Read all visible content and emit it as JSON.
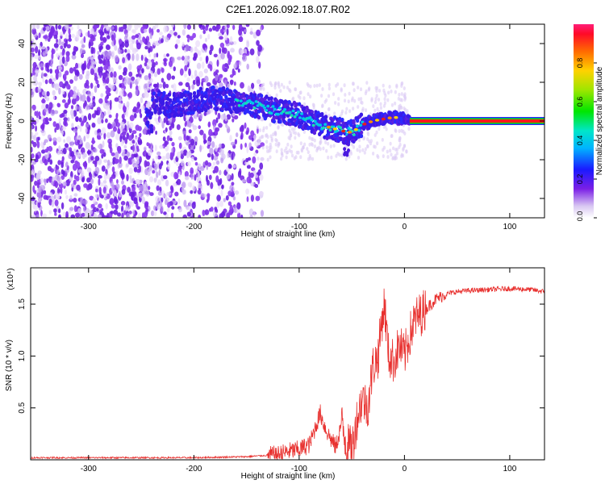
{
  "title": "C2E1.2026.092.18.07.R02",
  "chart_data": [
    {
      "type": "heatmap",
      "name": "spectrogram",
      "xlabel": "Height of straight line (km)",
      "ylabel": "Frequency (Hz)",
      "xlim": [
        -355,
        133
      ],
      "ylim": [
        -50,
        50
      ],
      "x_ticks": [
        -300,
        -200,
        -100,
        0,
        100
      ],
      "y_ticks": [
        -40,
        -20,
        0,
        20,
        40
      ],
      "ridge": {
        "x": [
          -240,
          -220,
          -180,
          -160,
          -140,
          -120,
          -100,
          -80,
          -60,
          -50,
          -40,
          -30,
          -20,
          -10,
          0,
          10,
          50,
          100,
          133
        ],
        "freq": [
          10,
          8,
          12,
          10,
          8,
          5,
          3,
          -2,
          -5,
          -6,
          -2,
          0,
          1,
          2,
          1,
          0,
          0,
          0,
          0
        ]
      },
      "colorbar": {
        "label": "Normalized spectral amplitude",
        "range": [
          0,
          1
        ],
        "ticks": [
          "0.0",
          "0.2",
          "0.4",
          "0.6",
          "0.8"
        ]
      }
    },
    {
      "type": "line",
      "name": "snr",
      "xlabel": "Height of straight line (km)",
      "ylabel": "SNR (10 * v/v)",
      "scale_note": "(x10⁴)",
      "xlim": [
        -355,
        133
      ],
      "ylim": [
        0,
        1.85
      ],
      "x_ticks": [
        -300,
        -200,
        -100,
        0,
        100
      ],
      "y_ticks": [
        "0.5",
        "1.0",
        "1.5"
      ],
      "y_tick_values": [
        0.5,
        1.0,
        1.5
      ],
      "series": [
        {
          "name": "SNR",
          "color": "#e8312f",
          "x": [
            -355,
            -300,
            -250,
            -200,
            -150,
            -120,
            -110,
            -100,
            -90,
            -85,
            -80,
            -75,
            -70,
            -65,
            -60,
            -55,
            -50,
            -45,
            -40,
            -35,
            -30,
            -25,
            -22,
            -19,
            -15,
            -10,
            -5,
            0,
            5,
            10,
            15,
            20,
            30,
            40,
            50,
            60,
            80,
            100,
            120,
            133
          ],
          "y": [
            0.02,
            0.02,
            0.02,
            0.02,
            0.03,
            0.05,
            0.08,
            0.1,
            0.15,
            0.3,
            0.45,
            0.3,
            0.2,
            0.12,
            0.35,
            0.15,
            0.1,
            0.4,
            0.6,
            0.5,
            0.9,
            1.0,
            1.3,
            1.5,
            1.0,
            0.95,
            1.1,
            1.0,
            1.2,
            1.35,
            1.4,
            1.45,
            1.55,
            1.6,
            1.62,
            1.63,
            1.64,
            1.65,
            1.64,
            1.62
          ]
        }
      ]
    }
  ]
}
